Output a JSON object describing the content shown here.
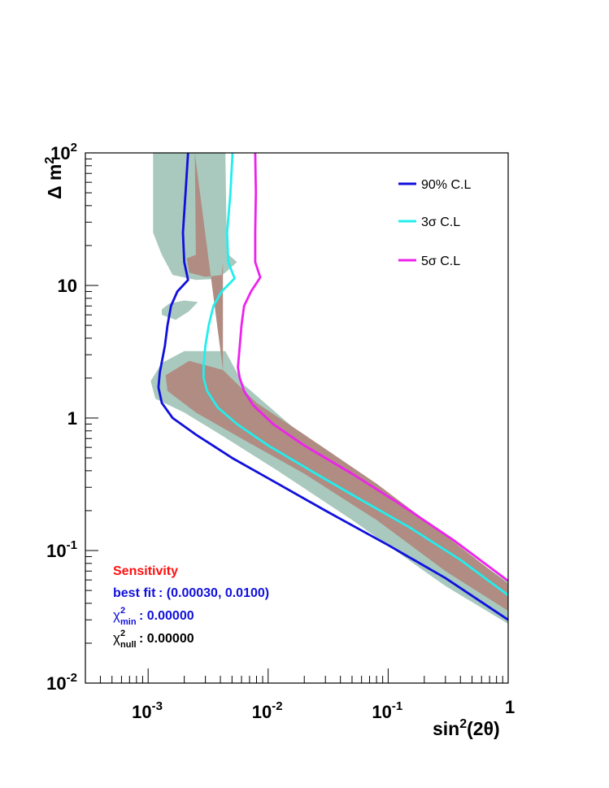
{
  "chart_data": {
    "type": "line",
    "xlabel": {
      "pre": "sin",
      "sup": "2",
      "post": "(2θ)"
    },
    "ylabel": {
      "pre": "Δ m",
      "sup": "2"
    },
    "xscale": "log",
    "yscale": "log",
    "xlim": [
      0.0003,
      1
    ],
    "ylim": [
      0.01,
      100
    ],
    "x_ticks": [
      {
        "value": 0.001,
        "base": "10",
        "exp": "-3"
      },
      {
        "value": 0.01,
        "base": "10",
        "exp": "-2"
      },
      {
        "value": 0.1,
        "base": "10",
        "exp": "-1"
      },
      {
        "value": 1,
        "base": "1",
        "exp": ""
      }
    ],
    "y_ticks": [
      {
        "value": 0.01,
        "base": "10",
        "exp": "-2"
      },
      {
        "value": 0.1,
        "base": "10",
        "exp": "-1"
      },
      {
        "value": 1,
        "base": "1",
        "exp": ""
      },
      {
        "value": 10,
        "base": "10",
        "exp": ""
      },
      {
        "value": 100,
        "base": "10",
        "exp": "2"
      }
    ],
    "grid": false,
    "legend_position": "top-right",
    "series": [
      {
        "name": "90% C.L",
        "color": "#1010dd",
        "points": [
          [
            0.00215,
            100
          ],
          [
            0.00205,
            50
          ],
          [
            0.00195,
            25
          ],
          [
            0.002,
            15
          ],
          [
            0.00215,
            11
          ],
          [
            0.00175,
            9
          ],
          [
            0.00155,
            7
          ],
          [
            0.00145,
            5
          ],
          [
            0.00138,
            3.5
          ],
          [
            0.00125,
            2.2
          ],
          [
            0.00122,
            1.7
          ],
          [
            0.0013,
            1.3
          ],
          [
            0.0016,
            1.0
          ],
          [
            0.0025,
            0.75
          ],
          [
            0.005,
            0.5
          ],
          [
            0.012,
            0.32
          ],
          [
            0.03,
            0.2
          ],
          [
            0.1,
            0.11
          ],
          [
            0.3,
            0.062
          ],
          [
            1,
            0.03
          ]
        ]
      },
      {
        "name": "3σ C.L",
        "color": "#22eeee",
        "points": [
          [
            0.00505,
            100
          ],
          [
            0.00485,
            50
          ],
          [
            0.00455,
            25
          ],
          [
            0.00465,
            15
          ],
          [
            0.00525,
            11.3
          ],
          [
            0.0041,
            9
          ],
          [
            0.0035,
            7
          ],
          [
            0.0032,
            5
          ],
          [
            0.003,
            3.5
          ],
          [
            0.0029,
            2.5
          ],
          [
            0.0029,
            2.0
          ],
          [
            0.0031,
            1.6
          ],
          [
            0.0038,
            1.2
          ],
          [
            0.0055,
            0.9
          ],
          [
            0.01,
            0.62
          ],
          [
            0.025,
            0.38
          ],
          [
            0.06,
            0.24
          ],
          [
            0.15,
            0.15
          ],
          [
            0.4,
            0.085
          ],
          [
            1,
            0.046
          ]
        ]
      },
      {
        "name": "5σ C.L",
        "color": "#ee22ee",
        "points": [
          [
            0.0078,
            100
          ],
          [
            0.0079,
            50
          ],
          [
            0.0078,
            25
          ],
          [
            0.0078,
            15
          ],
          [
            0.0086,
            11.5
          ],
          [
            0.0072,
            9
          ],
          [
            0.0063,
            7
          ],
          [
            0.006,
            5
          ],
          [
            0.0058,
            3.5
          ],
          [
            0.0056,
            2.4
          ],
          [
            0.0058,
            2.0
          ],
          [
            0.0063,
            1.6
          ],
          [
            0.0075,
            1.25
          ],
          [
            0.011,
            0.9
          ],
          [
            0.02,
            0.62
          ],
          [
            0.05,
            0.38
          ],
          [
            0.12,
            0.23
          ],
          [
            0.35,
            0.12
          ],
          [
            1,
            0.059
          ]
        ]
      }
    ],
    "regions": [
      {
        "name": "outer band",
        "color": "#a9c9bf",
        "polygon": [
          [
            0.0011,
            100
          ],
          [
            0.0011,
            25
          ],
          [
            0.0013,
            17
          ],
          [
            0.0016,
            12
          ],
          [
            0.0025,
            11
          ],
          [
            0.0036,
            11.2
          ],
          [
            0.0044,
            12.5
          ],
          [
            0.0055,
            15
          ],
          [
            0.0047,
            17
          ],
          [
            0.0045,
            25
          ],
          [
            0.0044,
            100
          ],
          [
            0.0044,
            3.2
          ],
          [
            0.0062,
            1.8
          ],
          [
            0.015,
            0.9
          ],
          [
            0.05,
            0.38
          ],
          [
            0.3,
            0.12
          ],
          [
            1,
            0.058
          ],
          [
            1,
            0.028
          ],
          [
            0.3,
            0.054
          ],
          [
            0.05,
            0.17
          ],
          [
            0.012,
            0.4
          ],
          [
            0.004,
            0.75
          ],
          [
            0.002,
            1.1
          ],
          [
            0.00115,
            1.4
          ],
          [
            0.00105,
            1.9
          ],
          [
            0.0013,
            2.6
          ],
          [
            0.002,
            3.2
          ],
          [
            0.0044,
            3.2
          ],
          [
            0.0044,
            100
          ]
        ]
      },
      {
        "name": "inner band",
        "color": "#b08c82",
        "polygon": [
          [
            0.00245,
            100
          ],
          [
            0.0025,
            17
          ],
          [
            0.0021,
            16
          ],
          [
            0.0022,
            12.5
          ],
          [
            0.003,
            11.6
          ],
          [
            0.0041,
            12
          ],
          [
            0.0042,
            15
          ],
          [
            0.0042,
            100
          ],
          [
            0.0042,
            2.3
          ],
          [
            0.008,
            1.3
          ],
          [
            0.02,
            0.75
          ],
          [
            0.08,
            0.32
          ],
          [
            0.3,
            0.13
          ],
          [
            1,
            0.056
          ],
          [
            1,
            0.035
          ],
          [
            0.3,
            0.07
          ],
          [
            0.08,
            0.17
          ],
          [
            0.02,
            0.38
          ],
          [
            0.006,
            0.7
          ],
          [
            0.0025,
            1.1
          ],
          [
            0.00145,
            1.6
          ],
          [
            0.0014,
            2.1
          ],
          [
            0.0022,
            2.7
          ],
          [
            0.0042,
            2.3
          ]
        ]
      },
      {
        "name": "island",
        "color": "#a9c9bf",
        "polygon": [
          [
            0.0013,
            6.0
          ],
          [
            0.0017,
            5.5
          ],
          [
            0.0022,
            6.4
          ],
          [
            0.0026,
            7.5
          ],
          [
            0.002,
            7.7
          ],
          [
            0.0015,
            7.3
          ],
          [
            0.0013,
            6.6
          ]
        ]
      }
    ],
    "annotations": {
      "sensitivity": {
        "text": "Sensitivity",
        "color": "#ff1010"
      },
      "best_fit": {
        "label": "best fit",
        "value": ": (0.00030, 0.0100)",
        "color": "#1010dd"
      },
      "chi2_min": {
        "symbol": "χ",
        "sup": "2",
        "sub": "min",
        "value": ": 0.00000",
        "color": "#1010dd"
      },
      "chi2_null": {
        "symbol": "χ",
        "sup": "2",
        "sub": "null",
        "value": ": 0.00000",
        "color": "#000000"
      }
    }
  }
}
